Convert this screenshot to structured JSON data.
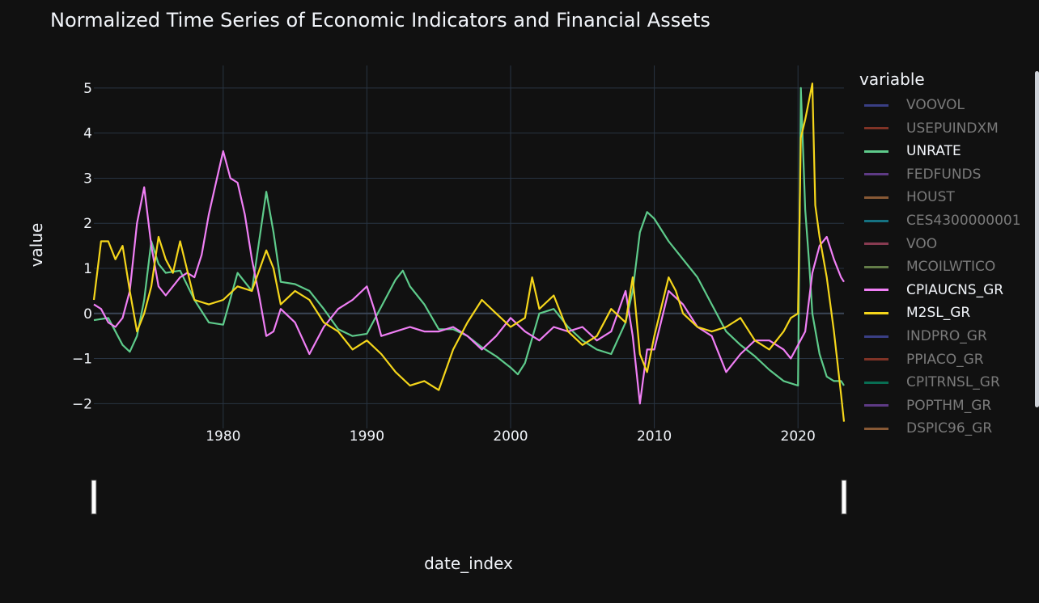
{
  "title": "Normalized Time Series of Economic Indicators and Financial Assets",
  "chart_data": {
    "type": "line",
    "title": "Normalized Time Series of Economic Indicators and Financial Assets",
    "xlabel": "date_index",
    "ylabel": "value",
    "xlim": [
      1971,
      2023.2
    ],
    "ylim": [
      -2.55,
      5.5
    ],
    "x_ticks": [
      1980,
      1990,
      2000,
      2010,
      2020
    ],
    "y_ticks": [
      5,
      4,
      3,
      2,
      1,
      0,
      -1,
      -2
    ],
    "y_tick_labels": [
      "5",
      "4",
      "3",
      "2",
      "1",
      "0",
      "−1",
      "−2"
    ],
    "grid": true,
    "legend_title": "variable",
    "legend_placement": "right",
    "legend": [
      {
        "name": "VOOVOL",
        "color": "#636efa",
        "visible": false
      },
      {
        "name": "USEPUINDXM",
        "color": "#ef553b",
        "visible": false
      },
      {
        "name": "UNRATE",
        "color": "#5ecb8b",
        "visible": true
      },
      {
        "name": "FEDFUNDS",
        "color": "#ab63fa",
        "visible": false
      },
      {
        "name": "HOUST",
        "color": "#ffa15a",
        "visible": false
      },
      {
        "name": "CES4300000001",
        "color": "#19d3f3",
        "visible": false
      },
      {
        "name": "VOO",
        "color": "#ff6692",
        "visible": false
      },
      {
        "name": "MCOILWTICO",
        "color": "#b6e880",
        "visible": false
      },
      {
        "name": "CPIAUCNS_GR",
        "color": "#f07ff5",
        "visible": true
      },
      {
        "name": "M2SL_GR",
        "color": "#f5d61b",
        "visible": true
      },
      {
        "name": "INDPRO_GR",
        "color": "#636efa",
        "visible": false
      },
      {
        "name": "PPIACO_GR",
        "color": "#ef553b",
        "visible": false
      },
      {
        "name": "CPITRNSL_GR",
        "color": "#00cc96",
        "visible": false
      },
      {
        "name": "POPTHM_GR",
        "color": "#ab63fa",
        "visible": false
      },
      {
        "name": "DSPIC96_GR",
        "color": "#ffa15a",
        "visible": false
      }
    ],
    "series": [
      {
        "name": "UNRATE",
        "color": "#5ecb8b",
        "x": [
          1971,
          1972,
          1973,
          1973.5,
          1974,
          1974.5,
          1975,
          1975.5,
          1976,
          1977,
          1978,
          1979,
          1980,
          1981,
          1982,
          1982.5,
          1983,
          1983.5,
          1984,
          1985,
          1986,
          1987,
          1988,
          1989,
          1990,
          1991,
          1992,
          1992.5,
          1993,
          1994,
          1995,
          1996,
          1997,
          1998,
          1999,
          2000,
          2000.5,
          2001,
          2002,
          2003,
          2004,
          2005,
          2006,
          2007,
          2008,
          2008.5,
          2009,
          2009.5,
          2010,
          2011,
          2012,
          2013,
          2014,
          2015,
          2016,
          2017,
          2018,
          2019,
          2020,
          2020.2,
          2020.5,
          2020.8,
          2021,
          2021.5,
          2022,
          2022.5,
          2023,
          2023.2
        ],
        "y": [
          -0.15,
          -0.1,
          -0.7,
          -0.85,
          -0.5,
          0.3,
          1.6,
          1.1,
          0.9,
          0.95,
          0.3,
          -0.2,
          -0.25,
          0.9,
          0.5,
          1.6,
          2.7,
          1.8,
          0.7,
          0.65,
          0.5,
          0.1,
          -0.35,
          -0.5,
          -0.45,
          0.15,
          0.75,
          0.95,
          0.6,
          0.2,
          -0.35,
          -0.35,
          -0.5,
          -0.75,
          -0.95,
          -1.2,
          -1.35,
          -1.1,
          0.0,
          0.1,
          -0.3,
          -0.6,
          -0.8,
          -0.9,
          -0.2,
          0.5,
          1.8,
          2.25,
          2.1,
          1.6,
          1.2,
          0.8,
          0.2,
          -0.4,
          -0.7,
          -0.95,
          -1.25,
          -1.5,
          -1.6,
          5.0,
          2.3,
          1.0,
          0.0,
          -0.9,
          -1.4,
          -1.5,
          -1.5,
          -1.6
        ]
      },
      {
        "name": "CPIAUCNS_GR",
        "color": "#f07ff5",
        "x": [
          1971,
          1971.5,
          1972,
          1972.5,
          1973,
          1973.5,
          1974,
          1974.5,
          1975,
          1975.5,
          1976,
          1977,
          1977.5,
          1978,
          1978.5,
          1979,
          1979.5,
          1980,
          1980.5,
          1981,
          1981.5,
          1982,
          1982.5,
          1983,
          1983.5,
          1984,
          1985,
          1986,
          1987,
          1988,
          1989,
          1990,
          1990.5,
          1991,
          1992,
          1993,
          1994,
          1995,
          1996,
          1997,
          1998,
          1999,
          2000,
          2001,
          2002,
          2003,
          2004,
          2005,
          2006,
          2007,
          2008,
          2008.5,
          2009,
          2009.5,
          2010,
          2011,
          2012,
          2013,
          2014,
          2015,
          2016,
          2017,
          2018,
          2019,
          2019.5,
          2020,
          2020.5,
          2021,
          2021.5,
          2022,
          2022.5,
          2023,
          2023.2
        ],
        "y": [
          0.2,
          0.1,
          -0.2,
          -0.3,
          -0.1,
          0.5,
          2.0,
          2.8,
          1.5,
          0.6,
          0.4,
          0.8,
          0.9,
          0.8,
          1.3,
          2.2,
          2.9,
          3.6,
          3.0,
          2.9,
          2.2,
          1.2,
          0.4,
          -0.5,
          -0.4,
          0.1,
          -0.2,
          -0.9,
          -0.3,
          0.1,
          0.3,
          0.6,
          0.1,
          -0.5,
          -0.4,
          -0.3,
          -0.4,
          -0.4,
          -0.3,
          -0.5,
          -0.8,
          -0.5,
          -0.1,
          -0.4,
          -0.6,
          -0.3,
          -0.4,
          -0.3,
          -0.6,
          -0.4,
          0.5,
          -0.5,
          -2.0,
          -0.8,
          -0.8,
          0.5,
          0.2,
          -0.3,
          -0.5,
          -1.3,
          -0.9,
          -0.6,
          -0.6,
          -0.8,
          -1.0,
          -0.7,
          -0.4,
          0.9,
          1.5,
          1.7,
          1.2,
          0.8,
          0.7
        ]
      },
      {
        "name": "M2SL_GR",
        "color": "#f5d61b",
        "x": [
          1971,
          1971.5,
          1972,
          1972.5,
          1973,
          1973.5,
          1974,
          1974.5,
          1975,
          1975.5,
          1976,
          1976.5,
          1977,
          1978,
          1979,
          1980,
          1981,
          1982,
          1983,
          1983.5,
          1984,
          1985,
          1986,
          1987,
          1988,
          1989,
          1990,
          1991,
          1992,
          1993,
          1994,
          1995,
          1996,
          1997,
          1998,
          1999,
          2000,
          2001,
          2001.5,
          2002,
          2003,
          2004,
          2005,
          2006,
          2007,
          2008,
          2008.5,
          2009,
          2009.5,
          2010,
          2011,
          2011.5,
          2012,
          2013,
          2014,
          2015,
          2016,
          2017,
          2018,
          2019,
          2019.5,
          2020,
          2020.2,
          2020.5,
          2021,
          2021.2,
          2021.5,
          2022,
          2022.5,
          2023,
          2023.2
        ],
        "y": [
          0.3,
          1.6,
          1.6,
          1.2,
          1.5,
          0.5,
          -0.4,
          0.0,
          0.6,
          1.7,
          1.2,
          0.9,
          1.6,
          0.3,
          0.2,
          0.3,
          0.6,
          0.5,
          1.4,
          1.0,
          0.2,
          0.5,
          0.3,
          -0.2,
          -0.4,
          -0.8,
          -0.6,
          -0.9,
          -1.3,
          -1.6,
          -1.5,
          -1.7,
          -0.8,
          -0.2,
          0.3,
          0.0,
          -0.3,
          -0.1,
          0.8,
          0.1,
          0.4,
          -0.4,
          -0.7,
          -0.5,
          0.1,
          -0.2,
          0.8,
          -0.9,
          -1.3,
          -0.5,
          0.8,
          0.5,
          0.0,
          -0.3,
          -0.4,
          -0.3,
          -0.1,
          -0.6,
          -0.8,
          -0.4,
          -0.1,
          0.0,
          3.9,
          4.3,
          5.1,
          2.4,
          1.7,
          0.8,
          -0.4,
          -1.8,
          -2.4
        ]
      }
    ]
  }
}
